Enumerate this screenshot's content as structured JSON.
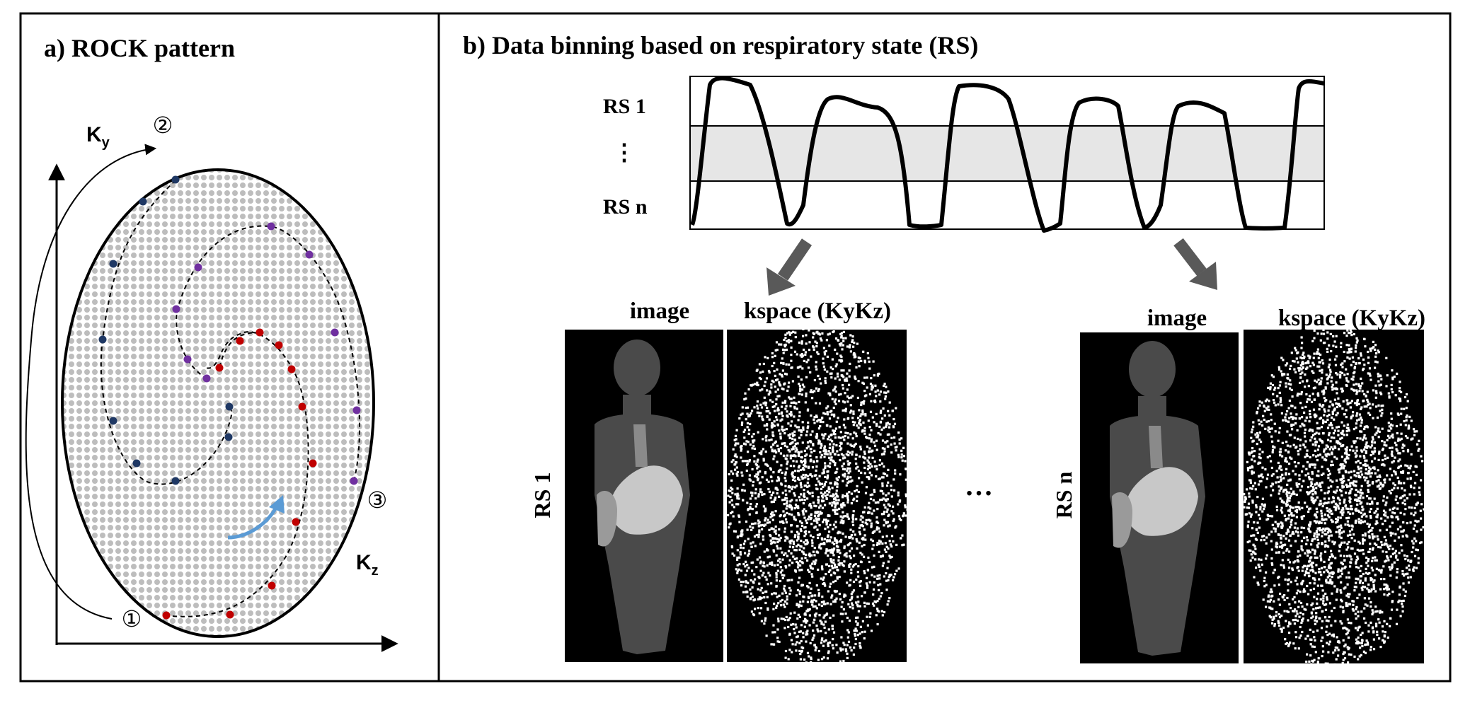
{
  "panel_a": {
    "title": "a) ROCK pattern",
    "axis_y_label": "K",
    "axis_y_sub": "y",
    "axis_z_label": "K",
    "axis_z_sub": "z",
    "markers": [
      "①",
      "②",
      "③"
    ]
  },
  "panel_b": {
    "title": "b) Data binning based on respiratory state (RS)",
    "trace_labels": {
      "top": "RS 1",
      "middle": "⋮",
      "bottom": "RS n"
    },
    "left_group": {
      "row_label": "RS 1",
      "image_header": "image",
      "kspace_header": "kspace (KyKz)"
    },
    "right_group": {
      "row_label": "RS n",
      "image_header": "image",
      "kspace_header": "kspace (KyKz)"
    },
    "ellipsis": "…"
  },
  "colors": {
    "grid_dot": "#bdbdbd",
    "red_dot": "#c00000",
    "purple_dot": "#7030a0",
    "navy_dot": "#1f3864",
    "blue_arrow": "#5b9bd5",
    "band": "#e6e6e6",
    "gray_arrow": "#595959"
  }
}
